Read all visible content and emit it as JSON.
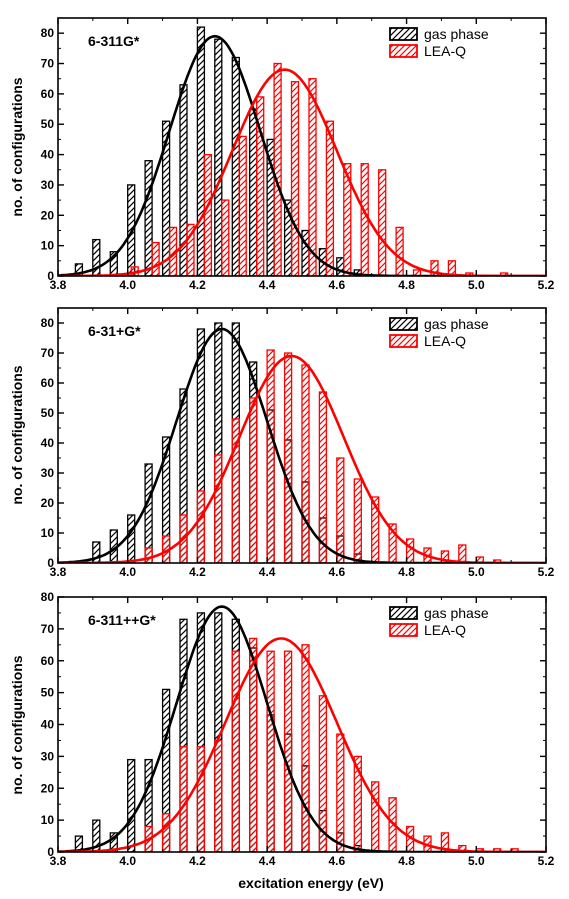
{
  "figure": {
    "xlabel": "excitation energy (eV)",
    "ylabel": "no. of configurations",
    "series_colors": {
      "gas phase": "#000000",
      "LEA-Q": "#ff0000"
    }
  },
  "chart_data": [
    {
      "type": "bar",
      "panel_label": "6-311G*",
      "xlim": [
        3.8,
        5.2
      ],
      "ylim": [
        0,
        85
      ],
      "xticks": [
        "3.8",
        "4.0",
        "4.2",
        "4.4",
        "4.6",
        "4.8",
        "5.0",
        "5.2"
      ],
      "yticks": [
        "0",
        "10",
        "20",
        "30",
        "40",
        "50",
        "60",
        "70",
        "80"
      ],
      "legend": [
        "gas phase",
        "LEA-Q"
      ],
      "legend_position": "top-right",
      "series": [
        {
          "name": "gas phase",
          "x": [
            3.86,
            3.91,
            3.96,
            4.01,
            4.06,
            4.11,
            4.16,
            4.21,
            4.26,
            4.31,
            4.36,
            4.41,
            4.46,
            4.51,
            4.56,
            4.61,
            4.66
          ],
          "values": [
            4,
            12,
            8,
            30,
            38,
            51,
            63,
            82,
            78,
            72,
            55,
            45,
            25,
            15,
            9,
            6,
            2
          ],
          "fit": {
            "type": "gaussian",
            "amplitude": 79,
            "center": 4.25,
            "sigma": 0.13
          }
        },
        {
          "name": "LEA-Q",
          "x": [
            4.02,
            4.08,
            4.13,
            4.18,
            4.23,
            4.28,
            4.33,
            4.38,
            4.43,
            4.48,
            4.53,
            4.58,
            4.63,
            4.68,
            4.73,
            4.78,
            4.83,
            4.88,
            4.93,
            4.98,
            5.03,
            5.08
          ],
          "values": [
            3,
            11,
            16,
            17,
            40,
            25,
            46,
            59,
            70,
            64,
            65,
            51,
            37,
            37,
            35,
            16,
            2,
            5,
            5,
            1,
            0,
            1
          ],
          "fit": {
            "type": "gaussian",
            "amplitude": 68,
            "center": 4.45,
            "sigma": 0.15
          }
        }
      ]
    },
    {
      "type": "bar",
      "panel_label": "6-31+G*",
      "xlim": [
        3.8,
        5.2
      ],
      "ylim": [
        0,
        85
      ],
      "xticks": [
        "3.8",
        "4.0",
        "4.2",
        "4.4",
        "4.6",
        "4.8",
        "5.0",
        "5.2"
      ],
      "yticks": [
        "0",
        "10",
        "20",
        "30",
        "40",
        "50",
        "60",
        "70",
        "80"
      ],
      "legend": [
        "gas phase",
        "LEA-Q"
      ],
      "legend_position": "top-right",
      "series": [
        {
          "name": "gas phase",
          "x": [
            3.91,
            3.96,
            4.01,
            4.06,
            4.11,
            4.16,
            4.21,
            4.26,
            4.31,
            4.36,
            4.41,
            4.46,
            4.51,
            4.56,
            4.61,
            4.66
          ],
          "values": [
            7,
            11,
            16,
            33,
            42,
            58,
            78,
            80,
            80,
            67,
            51,
            41,
            27,
            15,
            9,
            3
          ],
          "fit": {
            "type": "gaussian",
            "amplitude": 78,
            "center": 4.27,
            "sigma": 0.13
          }
        },
        {
          "name": "LEA-Q",
          "x": [
            4.06,
            4.11,
            4.16,
            4.21,
            4.26,
            4.31,
            4.36,
            4.41,
            4.46,
            4.51,
            4.56,
            4.61,
            4.66,
            4.71,
            4.76,
            4.81,
            4.86,
            4.91,
            4.96,
            5.01,
            5.06,
            5.11
          ],
          "values": [
            5,
            9,
            16,
            24,
            36,
            48,
            55,
            71,
            70,
            66,
            57,
            35,
            28,
            22,
            13,
            8,
            5,
            4,
            6,
            2,
            1,
            0
          ],
          "fit": {
            "type": "gaussian",
            "amplitude": 69,
            "center": 4.47,
            "sigma": 0.15
          }
        }
      ]
    },
    {
      "type": "bar",
      "panel_label": "6-311++G*",
      "xlim": [
        3.8,
        5.2
      ],
      "ylim": [
        0,
        80
      ],
      "xticks": [
        "3.8",
        "4.0",
        "4.2",
        "4.4",
        "4.6",
        "4.8",
        "5.0",
        "5.2"
      ],
      "yticks": [
        "0",
        "10",
        "20",
        "30",
        "40",
        "50",
        "60",
        "70",
        "80"
      ],
      "legend": [
        "gas phase",
        "LEA-Q"
      ],
      "legend_position": "top-right",
      "series": [
        {
          "name": "gas phase",
          "x": [
            3.86,
            3.91,
            3.96,
            4.01,
            4.06,
            4.11,
            4.16,
            4.21,
            4.26,
            4.31,
            4.36,
            4.41,
            4.46,
            4.51,
            4.56,
            4.61,
            4.66
          ],
          "values": [
            5,
            10,
            6,
            29,
            29,
            51,
            73,
            75,
            75,
            73,
            64,
            43,
            37,
            27,
            13,
            6,
            2
          ],
          "fit": {
            "type": "gaussian",
            "amplitude": 77,
            "center": 4.27,
            "sigma": 0.13
          }
        },
        {
          "name": "LEA-Q",
          "x": [
            4.06,
            4.11,
            4.16,
            4.21,
            4.26,
            4.31,
            4.36,
            4.41,
            4.46,
            4.51,
            4.56,
            4.61,
            4.66,
            4.71,
            4.76,
            4.81,
            4.86,
            4.91,
            4.96,
            5.01,
            5.06,
            5.11,
            5.16
          ],
          "values": [
            8,
            12,
            33,
            33,
            35,
            63,
            67,
            63,
            63,
            65,
            49,
            37,
            30,
            22,
            17,
            8,
            5,
            6,
            2,
            1,
            1,
            1,
            0
          ],
          "fit": {
            "type": "gaussian",
            "amplitude": 67,
            "center": 4.44,
            "sigma": 0.16
          }
        }
      ]
    }
  ]
}
